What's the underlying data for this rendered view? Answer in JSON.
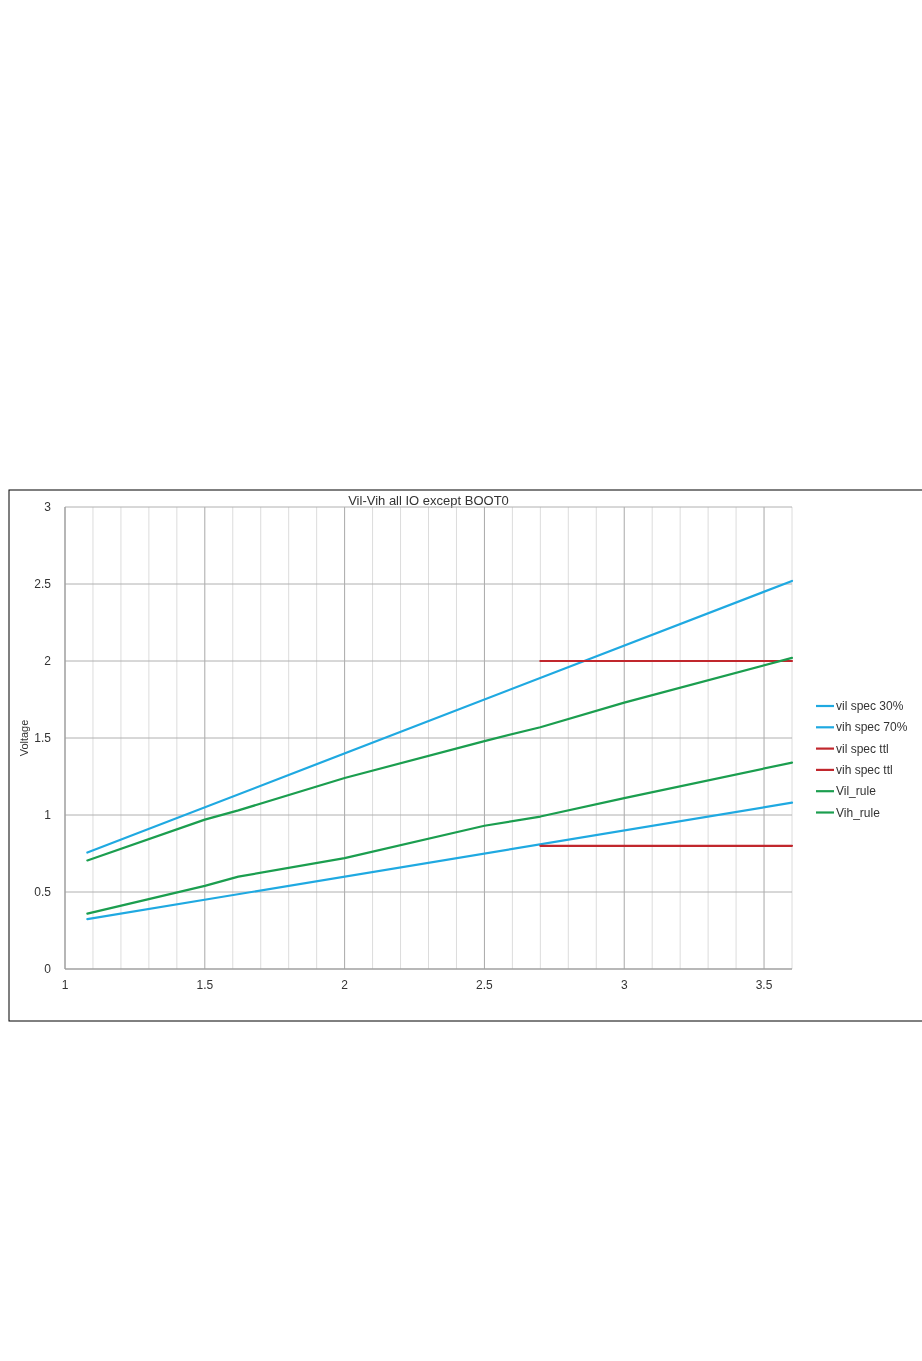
{
  "chart_data": {
    "type": "line",
    "title": "Vil-Vih all IO except BOOT0",
    "ylabel": "Voltage",
    "xlim": [
      1,
      3.6
    ],
    "ylim": [
      0,
      3
    ],
    "xticks": [
      1,
      {
        "value": 1.1,
        "label": null
      },
      {
        "value": 1.2,
        "label": null
      },
      {
        "value": 1.3,
        "label": null
      },
      {
        "value": 1.4,
        "label": null
      },
      1.5,
      {
        "value": 1.6,
        "label": null
      },
      {
        "value": 1.7,
        "label": null
      },
      {
        "value": 1.8,
        "label": null
      },
      {
        "value": 1.9,
        "label": null
      },
      2,
      {
        "value": 2.1,
        "label": null
      },
      {
        "value": 2.2,
        "label": null
      },
      {
        "value": 2.3,
        "label": null
      },
      {
        "value": 2.4,
        "label": null
      },
      2.5,
      {
        "value": 2.6,
        "label": null
      },
      {
        "value": 2.7,
        "label": null
      },
      {
        "value": 2.8,
        "label": null
      },
      {
        "value": 2.9,
        "label": null
      },
      3,
      {
        "value": 3.1,
        "label": null
      },
      {
        "value": 3.2,
        "label": null
      },
      {
        "value": 3.3,
        "label": null
      },
      {
        "value": 3.4,
        "label": null
      },
      3.5,
      {
        "value": 3.6,
        "label": null
      }
    ],
    "yticks": [
      0,
      0.5,
      1,
      1.5,
      2,
      2.5,
      3
    ],
    "grid": true,
    "legend": "right",
    "marker": "none",
    "line_style": "solid",
    "series": [
      {
        "name": "vil spec 30%",
        "color": "#1fa9e1",
        "x": [
          1.08,
          3.6
        ],
        "values": [
          0.324,
          1.08
        ]
      },
      {
        "name": "vih spec 70%",
        "color": "#1fa9e1",
        "x": [
          1.08,
          3.6
        ],
        "values": [
          0.756,
          2.52
        ]
      },
      {
        "name": "vil spec ttl",
        "color": "#c1272d",
        "x": [
          2.7,
          3.6
        ],
        "values": [
          0.8,
          0.8
        ]
      },
      {
        "name": "vih spec ttl",
        "color": "#c1272d",
        "x": [
          2.7,
          3.6
        ],
        "values": [
          2.0,
          2.0
        ]
      },
      {
        "name": "Vil_rule",
        "color": "#1b9e4f",
        "x": [
          1.08,
          1.5,
          1.62,
          2.0,
          2.5,
          2.7,
          3.0,
          3.6
        ],
        "values": [
          0.36,
          0.54,
          0.6,
          0.72,
          0.93,
          0.99,
          1.11,
          1.34
        ]
      },
      {
        "name": "Vih_rule",
        "color": "#1b9e4f",
        "x": [
          1.08,
          1.5,
          1.62,
          2.0,
          2.5,
          2.7,
          3.0,
          3.6
        ],
        "values": [
          0.705,
          0.97,
          1.03,
          1.24,
          1.48,
          1.57,
          1.73,
          2.02
        ]
      }
    ]
  }
}
